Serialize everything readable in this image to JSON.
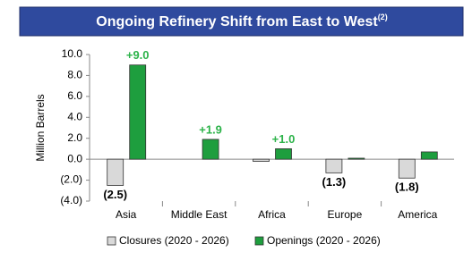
{
  "chart_data": {
    "type": "bar",
    "title": "Ongoing Refinery Shift from East to West",
    "title_superscript": "(2)",
    "y_label": "Million Barrels",
    "categories": [
      "Asia",
      "Middle East",
      "Africa",
      "Europe",
      "America"
    ],
    "series": [
      {
        "name": "Closures (2020 - 2026)",
        "color": "#d9d9d9",
        "values": [
          -2.5,
          null,
          -0.2,
          -1.3,
          -1.8
        ],
        "value_labels": [
          "(2.5)",
          null,
          null,
          "(1.3)",
          "(1.8)"
        ]
      },
      {
        "name": "Openings (2020 - 2026)",
        "color": "#1e9e3e",
        "values": [
          9.0,
          1.9,
          1.0,
          0.1,
          0.7
        ],
        "value_labels": [
          "+9.0",
          "+1.9",
          "+1.0",
          null,
          null
        ]
      }
    ],
    "ylim": [
      -4,
      10
    ],
    "yticks": [
      {
        "value": 10,
        "label": "10.0"
      },
      {
        "value": 8,
        "label": "8.0"
      },
      {
        "value": 6,
        "label": "6.0"
      },
      {
        "value": 4,
        "label": "4.0"
      },
      {
        "value": 2,
        "label": "2.0"
      },
      {
        "value": 0,
        "label": "0.0"
      },
      {
        "value": -2,
        "label": "(2.0)"
      },
      {
        "value": -4,
        "label": "(4.0)"
      }
    ],
    "legend": "bottom"
  }
}
